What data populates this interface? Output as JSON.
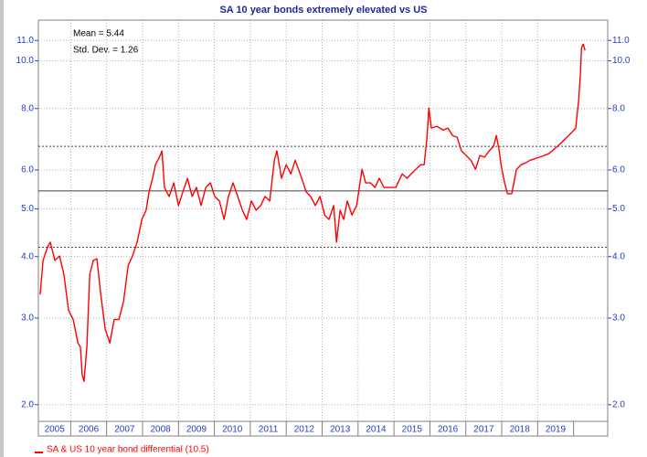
{
  "chart_data": {
    "type": "line",
    "title": "SA 10 year bonds extremely elevated vs US",
    "annotations": [
      "Mean = 5.44",
      "Std. Dev. = 1.26"
    ],
    "x": [
      2005.15,
      2005.23,
      2005.36,
      2005.43,
      2005.56,
      2005.69,
      2005.81,
      2005.94,
      2006.07,
      2006.2,
      2006.27,
      2006.32,
      2006.37,
      2006.45,
      2006.53,
      2006.63,
      2006.73,
      2006.83,
      2006.96,
      2007.09,
      2007.21,
      2007.34,
      2007.47,
      2007.6,
      2007.72,
      2007.85,
      2007.98,
      2008.1,
      2008.18,
      2008.28,
      2008.36,
      2008.49,
      2008.54,
      2008.61,
      2008.74,
      2008.87,
      2009.0,
      2009.12,
      2009.25,
      2009.38,
      2009.5,
      2009.63,
      2009.76,
      2009.89,
      2010.01,
      2010.14,
      2010.27,
      2010.39,
      2010.52,
      2010.65,
      2010.78,
      2010.9,
      2011.03,
      2011.16,
      2011.29,
      2011.41,
      2011.54,
      2011.67,
      2011.74,
      2011.87,
      2012.0,
      2012.13,
      2012.25,
      2012.43,
      2012.56,
      2012.68,
      2012.81,
      2012.94,
      2013.07,
      2013.19,
      2013.32,
      2013.4,
      2013.5,
      2013.6,
      2013.7,
      2013.83,
      2013.96,
      2014.11,
      2014.21,
      2014.34,
      2014.47,
      2014.59,
      2014.72,
      2014.92,
      2015.05,
      2015.23,
      2015.36,
      2015.48,
      2015.61,
      2015.74,
      2015.84,
      2015.92,
      2015.97,
      2016.04,
      2016.2,
      2016.37,
      2016.5,
      2016.63,
      2016.76,
      2016.88,
      2017.01,
      2017.14,
      2017.27,
      2017.39,
      2017.52,
      2017.65,
      2017.77,
      2017.85,
      2017.93,
      2017.98,
      2018.08,
      2018.16,
      2018.28,
      2018.41,
      2018.54,
      2018.66,
      2018.79,
      2019.05,
      2019.3,
      2019.55,
      2019.68,
      2019.81,
      2019.94,
      2020.06,
      2020.14,
      2020.19,
      2020.22,
      2020.27,
      2020.32
    ],
    "series": [
      {
        "name": "SA & US 10 year bond differential (10.5)",
        "color": "#ff0000",
        "values": [
          3.35,
          3.93,
          4.19,
          4.28,
          3.93,
          4.01,
          3.68,
          3.11,
          2.98,
          2.67,
          2.62,
          2.3,
          2.23,
          2.62,
          3.68,
          3.93,
          3.96,
          3.38,
          2.85,
          2.67,
          2.98,
          2.98,
          3.24,
          3.84,
          4.01,
          4.28,
          4.76,
          4.97,
          5.41,
          5.77,
          6.15,
          6.42,
          6.56,
          5.53,
          5.3,
          5.65,
          5.08,
          5.41,
          5.77,
          5.3,
          5.53,
          5.08,
          5.53,
          5.65,
          5.3,
          5.19,
          4.76,
          5.3,
          5.65,
          5.3,
          4.97,
          4.76,
          5.19,
          4.97,
          5.08,
          5.3,
          5.19,
          6.28,
          6.56,
          5.77,
          6.15,
          5.89,
          6.28,
          5.77,
          5.41,
          5.3,
          5.08,
          5.3,
          4.86,
          4.76,
          5.08,
          4.28,
          4.97,
          4.76,
          5.19,
          4.86,
          5.08,
          6.02,
          5.65,
          5.65,
          5.53,
          5.77,
          5.53,
          5.53,
          5.53,
          5.89,
          5.77,
          5.89,
          6.02,
          6.15,
          6.15,
          6.99,
          8.02,
          7.3,
          7.36,
          7.23,
          7.3,
          7.05,
          6.99,
          6.56,
          6.42,
          6.28,
          6.02,
          6.42,
          6.37,
          6.56,
          6.7,
          7.05,
          6.56,
          6.15,
          5.65,
          5.37,
          5.37,
          6.02,
          6.15,
          6.2,
          6.28,
          6.37,
          6.47,
          6.7,
          6.84,
          6.99,
          7.14,
          7.3,
          8.3,
          9.43,
          10.63,
          10.81,
          10.5
        ]
      }
    ],
    "xlim": [
      2005.1,
      2020.95
    ],
    "xticks": [
      2005,
      2006,
      2007,
      2008,
      2009,
      2010,
      2011,
      2012,
      2013,
      2014,
      2015,
      2016,
      2017,
      2018,
      2019
    ],
    "ylim": [
      1.85,
      12.1
    ],
    "log_scale": true,
    "yticks": [
      {
        "value": 2,
        "label": "2.0"
      },
      {
        "value": 3,
        "label": "3.0"
      },
      {
        "value": 4,
        "label": "4.0"
      },
      {
        "value": 5,
        "label": "5.0"
      },
      {
        "value": 6,
        "label": "6.0"
      },
      {
        "value": 8,
        "label": "8.0"
      },
      {
        "value": 10,
        "label": "10.0"
      },
      {
        "value": 11,
        "label": "11.0"
      }
    ],
    "hlines": [
      {
        "value": 6.7,
        "dashed": true
      },
      {
        "value": 5.44,
        "dashed": false
      },
      {
        "value": 4.18,
        "dashed": true
      }
    ],
    "grid": true
  }
}
